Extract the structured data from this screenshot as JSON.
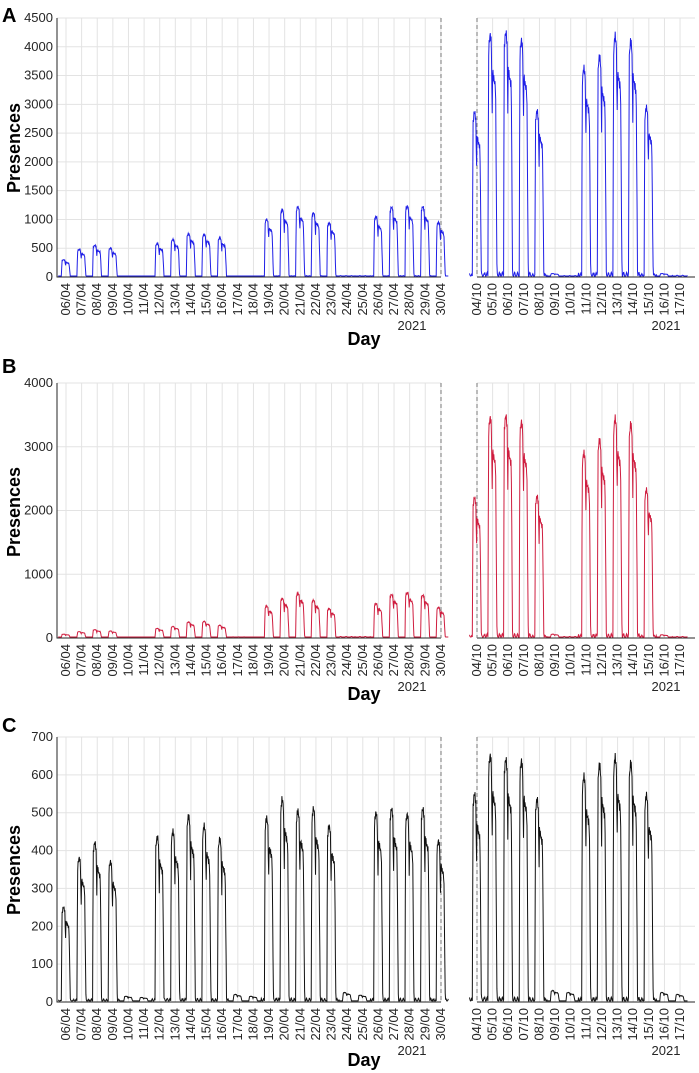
{
  "xlabel": "Day",
  "ylabel": "Presences",
  "year_label": "2021",
  "periods": {
    "april_dates": [
      "06/04",
      "07/04",
      "08/04",
      "09/04",
      "10/04",
      "11/04",
      "12/04",
      "13/04",
      "14/04",
      "15/04",
      "16/04",
      "17/04",
      "18/04",
      "19/04",
      "20/04",
      "21/04",
      "22/04",
      "23/04",
      "24/04",
      "25/04",
      "26/04",
      "27/04",
      "28/04",
      "29/04",
      "30/04"
    ],
    "october_dates": [
      "04/10",
      "05/10",
      "06/10",
      "07/10",
      "08/10",
      "09/10",
      "10/10",
      "11/10",
      "12/10",
      "13/10",
      "14/10",
      "15/10",
      "16/10",
      "17/10"
    ]
  },
  "chart_data": [
    {
      "panel": "A",
      "type": "line",
      "color": "#1f1fe6",
      "ylabel": "Presences",
      "xlabel": "Day",
      "ylim": [
        0,
        4500
      ],
      "yticks": [
        0,
        500,
        1000,
        1500,
        2000,
        2500,
        3000,
        3500,
        4000,
        4500
      ],
      "april_daily_peaks": [
        300,
        480,
        550,
        500,
        20,
        20,
        580,
        650,
        750,
        740,
        680,
        30,
        20,
        1000,
        1170,
        1220,
        1110,
        940,
        40,
        40,
        1050,
        1210,
        1230,
        1220,
        950
      ],
      "october_daily_peaks": [
        2860,
        4200,
        4240,
        4100,
        2880,
        60,
        40,
        3620,
        3820,
        4180,
        4090,
        2940,
        60,
        50
      ]
    },
    {
      "panel": "B",
      "type": "line",
      "color": "#cf1d3f",
      "ylabel": "Presences",
      "xlabel": "Day",
      "ylim": [
        0,
        4000
      ],
      "yticks": [
        0,
        1000,
        2000,
        3000,
        4000
      ],
      "april_daily_peaks": [
        60,
        100,
        130,
        110,
        20,
        20,
        150,
        180,
        250,
        260,
        200,
        30,
        20,
        500,
        620,
        700,
        590,
        460,
        40,
        40,
        540,
        680,
        710,
        670,
        480
      ],
      "october_daily_peaks": [
        2200,
        3450,
        3470,
        3380,
        2220,
        60,
        40,
        2900,
        3100,
        3440,
        3350,
        2320,
        50,
        40
      ]
    },
    {
      "panel": "C",
      "type": "line",
      "color": "#111111",
      "ylabel": "Presences",
      "xlabel": "Day",
      "ylim": [
        0,
        700
      ],
      "yticks": [
        0,
        100,
        200,
        300,
        400,
        500,
        600,
        700
      ],
      "april_daily_peaks": [
        250,
        380,
        420,
        370,
        15,
        12,
        435,
        450,
        490,
        465,
        430,
        20,
        15,
        485,
        535,
        505,
        510,
        465,
        25,
        18,
        500,
        510,
        495,
        510,
        425
      ],
      "october_daily_peaks": [
        550,
        650,
        640,
        635,
        535,
        30,
        25,
        595,
        625,
        645,
        630,
        545,
        25,
        20
      ]
    }
  ]
}
